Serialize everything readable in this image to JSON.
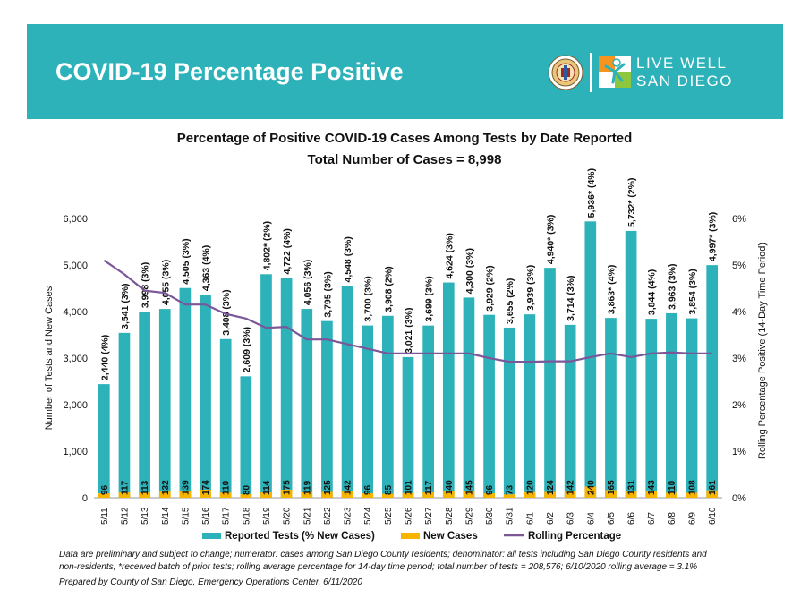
{
  "header": {
    "title": "COVID-19 Percentage Positive",
    "logo_text_line1": "LIVE WELL",
    "logo_text_line2": "SAN DIEGO"
  },
  "colors": {
    "banner": "#2cb2b8",
    "tests_bar": "#2cb2b8",
    "cases_bar": "#f7b500",
    "rolling_line": "#7b579a"
  },
  "chart_data": {
    "type": "bar",
    "title": "Percentage of Positive COVID-19 Cases Among Tests by Date Reported",
    "subtitle": "Total Number of Cases = 8,998",
    "ylabel": "Number of Tests and New Cases",
    "y2label": "Rolling Percentage Positive (14-Day Time Period)",
    "ylim": [
      0,
      6000
    ],
    "yticks": [
      "0",
      "1,000",
      "2,000",
      "3,000",
      "4,000",
      "5,000",
      "6,000"
    ],
    "y2lim": [
      0,
      6
    ],
    "y2ticks": [
      "0%",
      "1%",
      "2%",
      "3%",
      "4%",
      "5%",
      "6%"
    ],
    "categories": [
      "5/11",
      "5/12",
      "5/13",
      "5/14",
      "5/15",
      "5/16",
      "5/17",
      "5/18",
      "5/19",
      "5/20",
      "5/21",
      "5/22",
      "5/23",
      "5/24",
      "5/25",
      "5/26",
      "5/27",
      "5/28",
      "5/29",
      "5/30",
      "5/31",
      "6/1",
      "6/2",
      "6/3",
      "6/4",
      "6/5",
      "6/6",
      "6/7",
      "6/8",
      "6/9",
      "6/10"
    ],
    "series": [
      {
        "name": "Reported Tests (% New Cases)",
        "type": "bar",
        "values": [
          2440,
          3541,
          3998,
          4055,
          4505,
          4363,
          3408,
          2609,
          4802,
          4722,
          4056,
          3795,
          4548,
          3700,
          3908,
          3021,
          3699,
          4624,
          4300,
          3929,
          3655,
          3939,
          4940,
          3714,
          5936,
          3863,
          5732,
          3844,
          3963,
          3854,
          4997
        ],
        "labels": [
          "2,440 (4%)",
          "3,541 (3%)",
          "3,998 (3%)",
          "4,055 (3%)",
          "4,505 (3%)",
          "4,363 (4%)",
          "3,408 (3%)",
          "2,609 (3%)",
          "4,802* (2%)",
          "4,722 (4%)",
          "4,056 (3%)",
          "3,795 (3%)",
          "4,548 (3%)",
          "3,700 (3%)",
          "3,908 (2%)",
          "3,021 (3%)",
          "3,699 (3%)",
          "4,624 (3%)",
          "4,300 (3%)",
          "3,929 (2%)",
          "3,655 (2%)",
          "3,939 (3%)",
          "4,940* (3%)",
          "3,714 (3%)",
          "5,936* (4%)",
          "3,863* (4%)",
          "5,732* (2%)",
          "3,844 (4%)",
          "3,963 (3%)",
          "3,854 (3%)",
          "4,997* (3%)"
        ]
      },
      {
        "name": "New Cases",
        "type": "bar",
        "values": [
          96,
          117,
          113,
          132,
          139,
          174,
          110,
          80,
          114,
          175,
          119,
          125,
          142,
          96,
          85,
          101,
          117,
          140,
          145,
          96,
          73,
          120,
          124,
          142,
          240,
          165,
          131,
          143,
          110,
          108,
          161
        ]
      },
      {
        "name": "Rolling Percentage",
        "type": "line",
        "axis": "y2",
        "values": [
          5.1,
          4.8,
          4.45,
          4.4,
          4.15,
          4.15,
          3.95,
          3.85,
          3.65,
          3.67,
          3.4,
          3.4,
          3.3,
          3.2,
          3.1,
          3.1,
          3.1,
          3.1,
          3.1,
          3.0,
          2.92,
          2.92,
          2.93,
          2.93,
          3.02,
          3.1,
          3.02,
          3.1,
          3.12,
          3.1,
          3.1
        ]
      }
    ],
    "legend_position": "bottom",
    "grid": false
  },
  "footnotes": {
    "line1": "Data are preliminary and subject to change; numerator: cases among San Diego County residents; denominator: all tests including San Diego County residents and",
    "line2": "non-residents; *received batch of prior tests; rolling average percentage for 14-day time period; total number of tests = 208,576; 6/10/2020 rolling average = 3.1%",
    "line3": "Prepared by County of San Diego, Emergency Operations Center, 6/11/2020"
  }
}
